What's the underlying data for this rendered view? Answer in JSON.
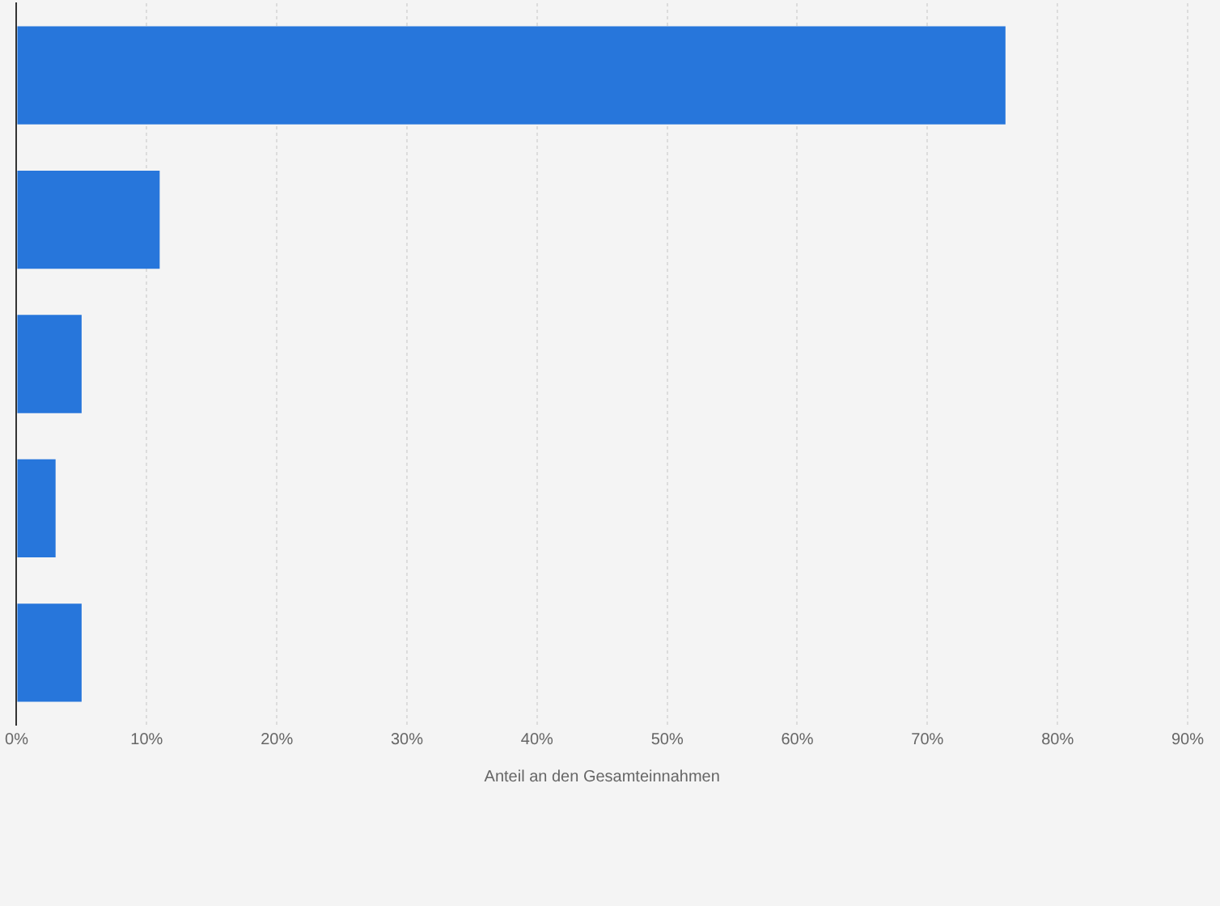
{
  "chart_data": {
    "type": "bar",
    "orientation": "horizontal",
    "xlabel": "Anteil an den Gesamteinnahmen",
    "categories": [
      null,
      null,
      null,
      null,
      null
    ],
    "values": [
      76,
      11,
      5,
      3,
      5
    ],
    "color": "#2776db",
    "xlim": [
      0,
      90
    ],
    "xticks": [
      {
        "value": 0,
        "label": "0%"
      },
      {
        "value": 10,
        "label": "10%"
      },
      {
        "value": 20,
        "label": "20%"
      },
      {
        "value": 30,
        "label": "30%"
      },
      {
        "value": 40,
        "label": "40%"
      },
      {
        "value": 50,
        "label": "50%"
      },
      {
        "value": 60,
        "label": "60%"
      },
      {
        "value": 70,
        "label": "70%"
      },
      {
        "value": 80,
        "label": "80%"
      },
      {
        "value": 90,
        "label": "90%"
      }
    ],
    "grid": "x",
    "legend": false
  }
}
